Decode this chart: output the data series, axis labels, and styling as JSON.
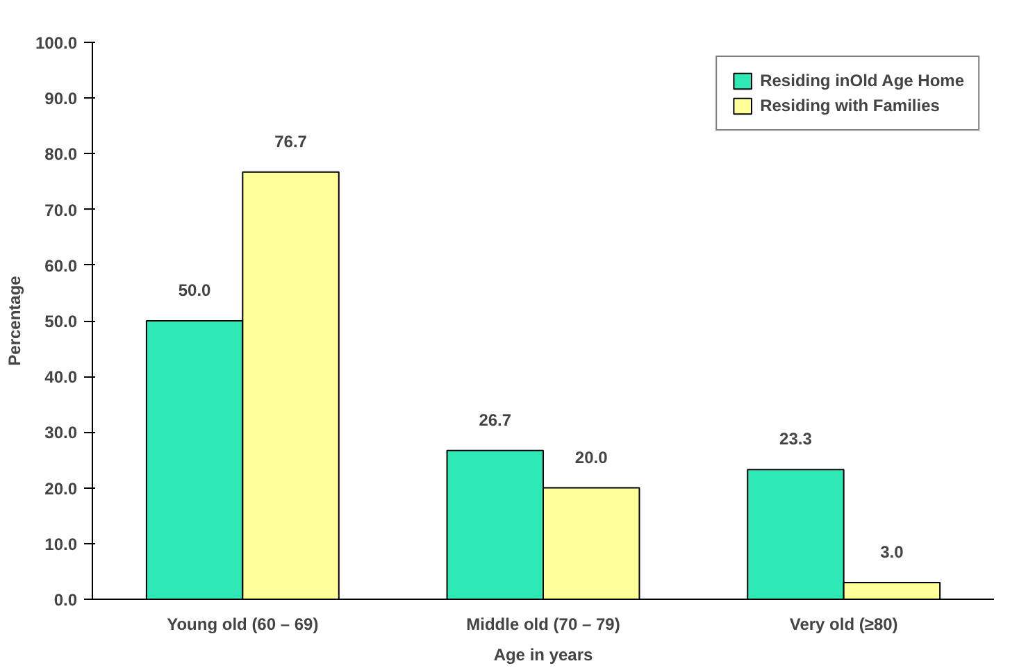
{
  "chart_data": {
    "type": "bar",
    "categories": [
      "Young old (60 – 69)",
      "Middle old (70 – 79)",
      "Very old (≥80)"
    ],
    "series": [
      {
        "name": "Residing inOld Age Home",
        "color": "#2ee8b6",
        "values": [
          50.0,
          26.7,
          23.3
        ],
        "value_labels": [
          "50.0",
          "26.7",
          "23.3"
        ]
      },
      {
        "name": "Residing with Families",
        "color": "#ffff99",
        "values": [
          76.7,
          20.0,
          3.0
        ],
        "value_labels": [
          "76.7",
          "20.0",
          "3.0"
        ]
      }
    ],
    "xlabel": "Age in years",
    "ylabel": "Percentage",
    "ylim": [
      0,
      100
    ],
    "yticks": [
      {
        "value": 0,
        "label": "0.0"
      },
      {
        "value": 10,
        "label": "10.0"
      },
      {
        "value": 20,
        "label": "20.0"
      },
      {
        "value": 30,
        "label": "30.0"
      },
      {
        "value": 40,
        "label": "40.0"
      },
      {
        "value": 50,
        "label": "50.0"
      },
      {
        "value": 60,
        "label": "60.0"
      },
      {
        "value": 70,
        "label": "70.0"
      },
      {
        "value": 80,
        "label": "80.0"
      },
      {
        "value": 90,
        "label": "90.0"
      },
      {
        "value": 100,
        "label": "100.0"
      }
    ],
    "grid": false,
    "legend": "top right"
  }
}
